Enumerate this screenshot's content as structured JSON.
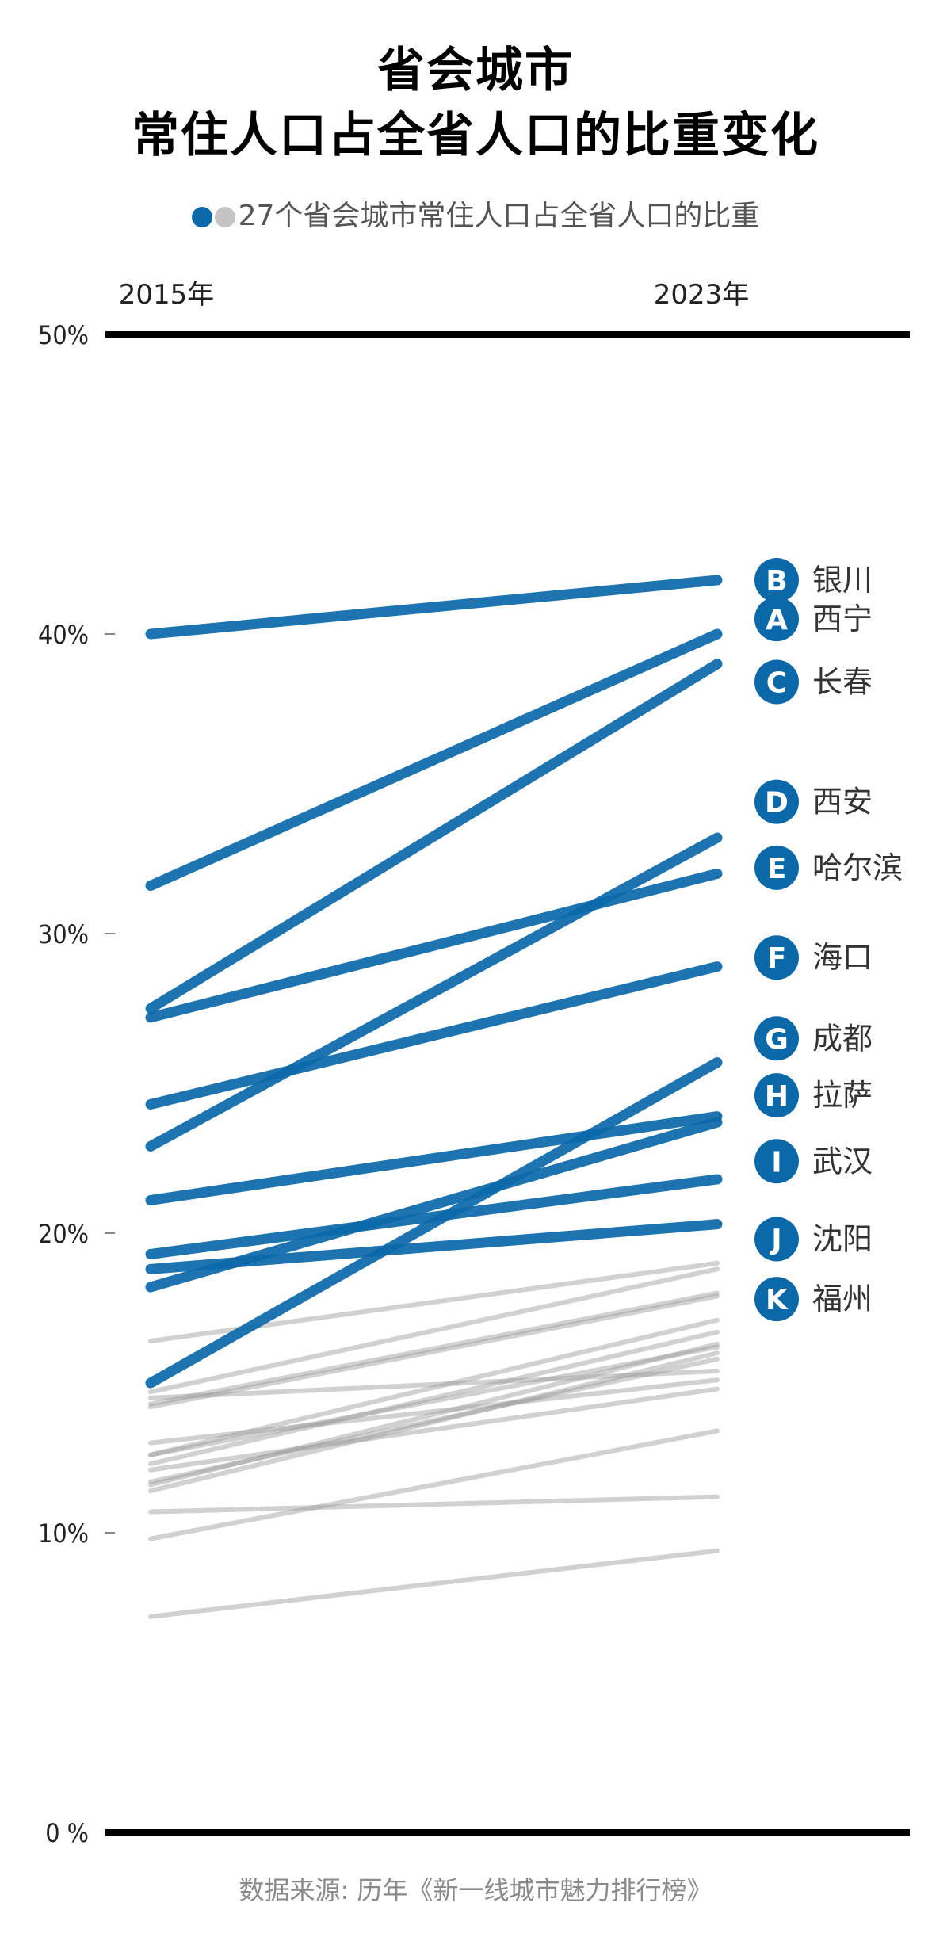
{
  "title_line1": "省会城市",
  "title_line2": "常住人口占全省人口的比重变化",
  "legend_text": "27个省会城市常住人口占全省人口的比重",
  "source": "数据来源: 历年《新一线城市魅力排行榜》",
  "colors": {
    "highlight": "#0b68a9",
    "highlight_dark": "#0a3d6e",
    "other": "#cccccc",
    "axis": "#000000"
  },
  "chart_data": {
    "type": "line",
    "x": [
      "2015年",
      "2023年"
    ],
    "ylim": [
      0,
      50
    ],
    "yticks": [
      {
        "value": 0,
        "label": "0 %"
      },
      {
        "value": 10,
        "label": "10%"
      },
      {
        "value": 20,
        "label": "20%"
      },
      {
        "value": 30,
        "label": "30%"
      },
      {
        "value": 40,
        "label": "40%"
      },
      {
        "value": 50,
        "label": "50%"
      }
    ],
    "labels": [
      {
        "letter": "A",
        "name": "西宁",
        "y": 40.5
      },
      {
        "letter": "B",
        "name": "银川",
        "y": 41.8
      },
      {
        "letter": "C",
        "name": "长春",
        "y": 38.4
      },
      {
        "letter": "D",
        "name": "西安",
        "y": 34.4
      },
      {
        "letter": "E",
        "name": "哈尔滨",
        "y": 32.2
      },
      {
        "letter": "F",
        "name": "海口",
        "y": 29.2
      },
      {
        "letter": "G",
        "name": "成都",
        "y": 26.5
      },
      {
        "letter": "H",
        "name": "拉萨",
        "y": 24.6
      },
      {
        "letter": "I",
        "name": "武汉",
        "y": 22.4
      },
      {
        "letter": "J",
        "name": "沈阳",
        "y": 19.8
      },
      {
        "letter": "K",
        "name": "福州",
        "y": 17.8
      }
    ],
    "highlight_series": [
      {
        "values": [
          40.0,
          41.8
        ]
      },
      {
        "values": [
          31.6,
          40.0
        ]
      },
      {
        "values": [
          27.5,
          39.0
        ]
      },
      {
        "values": [
          27.2,
          32.0
        ]
      },
      {
        "values": [
          22.9,
          33.2
        ]
      },
      {
        "values": [
          24.3,
          28.9
        ]
      },
      {
        "values": [
          21.1,
          23.9
        ]
      },
      {
        "values": [
          19.3,
          21.8
        ]
      },
      {
        "values": [
          18.8,
          20.3
        ]
      },
      {
        "values": [
          18.2,
          23.7
        ]
      },
      {
        "values": [
          15.0,
          25.7
        ]
      }
    ],
    "other_series": [
      {
        "values": [
          16.4,
          19.0
        ]
      },
      {
        "values": [
          14.7,
          18.8
        ]
      },
      {
        "values": [
          14.3,
          18.0
        ]
      },
      {
        "values": [
          14.2,
          17.9
        ]
      },
      {
        "values": [
          12.6,
          17.1
        ]
      },
      {
        "values": [
          12.3,
          16.7
        ]
      },
      {
        "values": [
          11.6,
          16.3
        ]
      },
      {
        "values": [
          11.4,
          16.0
        ]
      },
      {
        "values": [
          13.0,
          15.1
        ]
      },
      {
        "values": [
          14.5,
          15.4
        ]
      },
      {
        "values": [
          12.1,
          14.8
        ]
      },
      {
        "values": [
          11.7,
          15.8
        ]
      },
      {
        "values": [
          10.7,
          11.2
        ]
      },
      {
        "values": [
          9.8,
          13.4
        ]
      },
      {
        "values": [
          12.6,
          16.2
        ]
      },
      {
        "values": [
          7.2,
          9.4
        ]
      }
    ]
  }
}
